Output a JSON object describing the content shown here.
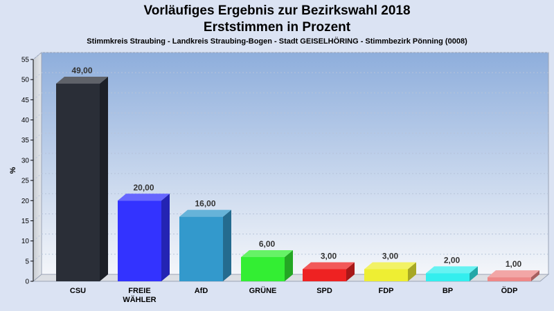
{
  "header": {
    "title_line1": "Vorläufiges Ergebnis zur Bezirkswahl 2018",
    "title_line2": "Erststimmen in Prozent",
    "subtitle": "Stimmkreis Straubing - Landkreis Straubing-Bogen - Stadt GEISELHÖRING - Stimmbezirk Pönning (0008)"
  },
  "chart_data": {
    "type": "bar",
    "title": "Vorläufiges Ergebnis zur Bezirkswahl 2018 Erststimmen in Prozent",
    "ylabel": "%",
    "ylim": [
      0,
      55
    ],
    "yticks": [
      0,
      5,
      10,
      15,
      20,
      25,
      30,
      35,
      40,
      45,
      50,
      55
    ],
    "grid": true,
    "categories": [
      [
        "CSU"
      ],
      [
        "FREIE",
        "WÄHLER"
      ],
      [
        "AfD"
      ],
      [
        "GRÜNE"
      ],
      [
        "SPD"
      ],
      [
        "FDP"
      ],
      [
        "BP"
      ],
      [
        "ÖDP"
      ]
    ],
    "values": [
      49.0,
      20.0,
      16.0,
      6.0,
      3.0,
      3.0,
      2.0,
      1.0
    ],
    "value_labels": [
      "49,00",
      "20,00",
      "16,00",
      "6,00",
      "3,00",
      "3,00",
      "2,00",
      "1,00"
    ],
    "colors": [
      "#2a2e37",
      "#3333ff",
      "#3399cc",
      "#33ee33",
      "#ee2222",
      "#eeee33",
      "#33eeee",
      "#ee8888"
    ]
  }
}
